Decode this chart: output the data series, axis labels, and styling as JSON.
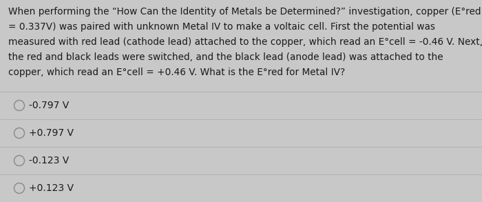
{
  "bg_color": "#c8c8c8",
  "panel_color": "#d4d4d4",
  "text_color": "#1a1a1a",
  "options": [
    "-0.797 V",
    "+0.797 V",
    "-0.123 V",
    "+0.123 V"
  ],
  "divider_color": "#b0b0b0",
  "circle_color": "#888888",
  "font_size_question": 9.8,
  "font_size_options": 10.0,
  "question_line1": "When performing the “How Can the Identity of Metals be Determined?” investigation, copper (E°red",
  "question_line2": "= 0.337V) was paired with unknown Metal IV to make a voltaic cell. First the potential was",
  "question_line3": "measured with red lead (cathode lead) attached to the copper, which read an E°cell = -0.46 V. Next,",
  "question_line4": "the red and black leads were switched, and the black lead (anode lead) was attached to the",
  "question_line5": "copper, which read an E°cell = +0.46 V. What is the E°red for Metal IV?"
}
